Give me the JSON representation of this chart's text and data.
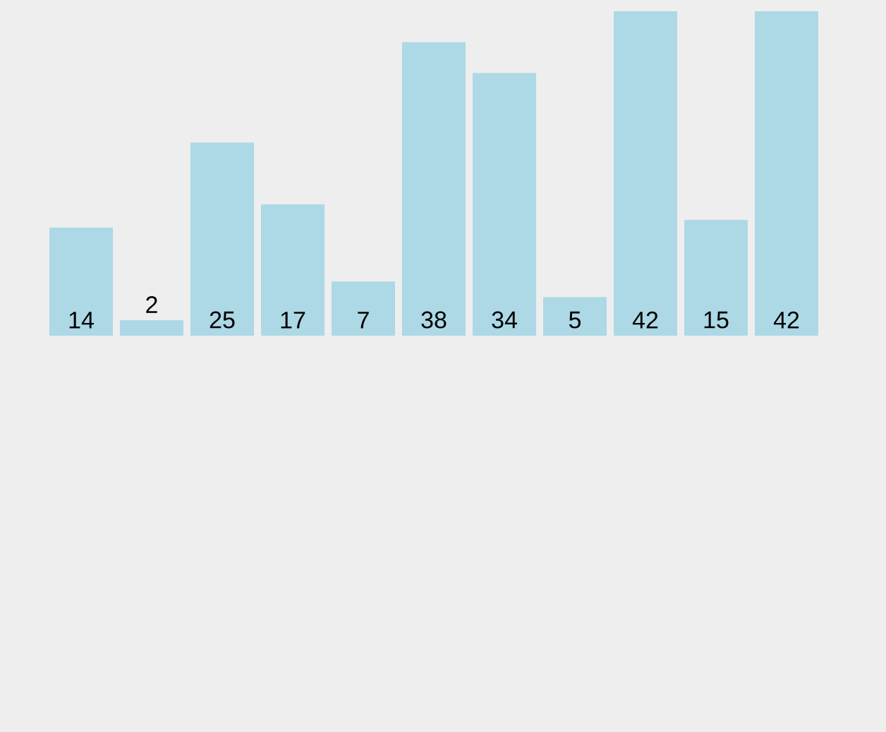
{
  "chart_data": {
    "type": "bar",
    "categories": [
      null,
      null,
      null,
      null,
      null,
      null,
      null,
      null,
      null,
      null,
      null
    ],
    "values": [
      14,
      2,
      25,
      17,
      7,
      38,
      34,
      5,
      42,
      15,
      42
    ],
    "color": "#add8e6",
    "data_labels": true
  }
}
